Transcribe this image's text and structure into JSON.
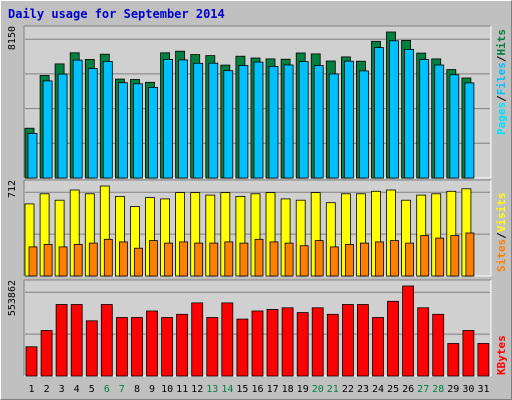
{
  "title": "Daily usage for September 2014",
  "colors": {
    "background": "#C0C0C0",
    "panel": "#D0D0D0",
    "hits": "#008040",
    "files": "#00C0FF",
    "pages": "#00E0FF",
    "visits": "#FFFF00",
    "sites": "#FF8000",
    "kbytes": "#FF0000",
    "weekend_day": "#008040",
    "weekday": "#000000",
    "title": "#0000CC"
  },
  "chart_data": [
    {
      "type": "bar",
      "panel": "hits-files-pages",
      "ymax_label": "8150",
      "ylim": [
        0,
        8150
      ],
      "legend": [
        "Pages",
        "/",
        "Files",
        "/",
        "Hits"
      ],
      "categories": [
        "1",
        "2",
        "3",
        "4",
        "5",
        "6",
        "7",
        "8",
        "9",
        "10",
        "11",
        "12",
        "13",
        "14",
        "15",
        "16",
        "17",
        "18",
        "19",
        "20",
        "21",
        "22",
        "23",
        "24",
        "25",
        "26",
        "27",
        "28",
        "29",
        "30",
        "31"
      ],
      "weekend_days": [
        "6",
        "7",
        "13",
        "14",
        "20",
        "21",
        "27",
        "28"
      ],
      "series": [
        {
          "name": "Hits",
          "values": [
            2780,
            5720,
            6370,
            6990,
            6620,
            6910,
            5520,
            5500,
            5340,
            6990,
            7080,
            6890,
            6830,
            6300,
            6800,
            6700,
            6650,
            6630,
            6980,
            6930,
            6530,
            6760,
            6520,
            7630,
            8150,
            7680,
            6970,
            6650,
            6050,
            5580,
            0
          ]
        },
        {
          "name": "Files",
          "values": [
            2490,
            5420,
            5800,
            6580,
            6110,
            6510,
            5320,
            5260,
            5060,
            6620,
            6590,
            6400,
            6410,
            5990,
            6280,
            6470,
            6230,
            6310,
            6500,
            6280,
            5810,
            6520,
            5980,
            7280,
            7660,
            7180,
            6610,
            6310,
            5760,
            5310,
            0
          ]
        },
        {
          "name": "Pages",
          "values": [
            2490,
            5420,
            5800,
            6580,
            6110,
            6510,
            5320,
            5260,
            5060,
            6620,
            6590,
            6400,
            6410,
            5990,
            6280,
            6470,
            6230,
            6310,
            6500,
            6280,
            5810,
            6520,
            5980,
            7280,
            7660,
            7180,
            6610,
            6310,
            5760,
            5310,
            0
          ]
        }
      ]
    },
    {
      "type": "bar",
      "panel": "visits-sites",
      "ymax_label": "712",
      "ylim": [
        0,
        712
      ],
      "legend": [
        "Sites",
        "/",
        "Visits"
      ],
      "categories": [
        "1",
        "2",
        "3",
        "4",
        "5",
        "6",
        "7",
        "8",
        "9",
        "10",
        "11",
        "12",
        "13",
        "14",
        "15",
        "16",
        "17",
        "18",
        "19",
        "20",
        "21",
        "22",
        "23",
        "24",
        "25",
        "26",
        "27",
        "28",
        "29",
        "30",
        "31"
      ],
      "series": [
        {
          "name": "Visits",
          "values": [
            570,
            650,
            600,
            680,
            650,
            712,
            630,
            550,
            620,
            610,
            660,
            660,
            640,
            660,
            630,
            650,
            660,
            610,
            600,
            660,
            580,
            650,
            650,
            670,
            680,
            600,
            640,
            650,
            670,
            690,
            0
          ]
        },
        {
          "name": "Sites",
          "values": [
            230,
            250,
            230,
            250,
            260,
            290,
            270,
            220,
            280,
            260,
            270,
            260,
            260,
            270,
            260,
            290,
            270,
            260,
            240,
            280,
            230,
            250,
            260,
            270,
            280,
            260,
            320,
            300,
            320,
            340,
            0
          ]
        }
      ]
    },
    {
      "type": "bar",
      "panel": "kbytes",
      "ymax_label": "553862",
      "ylim": [
        0,
        553862
      ],
      "legend": [
        "KBytes"
      ],
      "categories": [
        "1",
        "2",
        "3",
        "4",
        "5",
        "6",
        "7",
        "8",
        "9",
        "10",
        "11",
        "12",
        "13",
        "14",
        "15",
        "16",
        "17",
        "18",
        "19",
        "20",
        "21",
        "22",
        "23",
        "24",
        "25",
        "26",
        "27",
        "28",
        "29",
        "30",
        "31"
      ],
      "series": [
        {
          "name": "KBytes",
          "values": [
            180000,
            280000,
            440000,
            440000,
            340000,
            440000,
            360000,
            360000,
            400000,
            360000,
            380000,
            450000,
            360000,
            450000,
            350000,
            400000,
            410000,
            420000,
            390000,
            420000,
            380000,
            440000,
            440000,
            360000,
            460000,
            553862,
            420000,
            380000,
            200000,
            280000,
            200000
          ]
        }
      ]
    }
  ]
}
